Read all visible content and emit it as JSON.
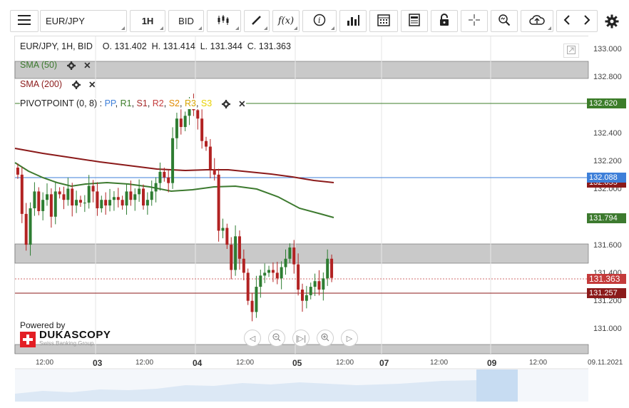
{
  "toolbar": {
    "symbol": "EUR/JPY",
    "timeframe": "1H",
    "price_type": "BID"
  },
  "ohlc": {
    "header": "EUR/JPY, 1H, BID",
    "o": "O. 131.402",
    "h": "H. 131.414",
    "l": "L. 131.344",
    "c": "C. 131.363"
  },
  "indicators": {
    "sma50": "SMA (50)",
    "sma200": "SMA (200)",
    "pivot_prefix": "PIVOTPOINT (0, 8)",
    "pivot_items": [
      {
        "label": "PP",
        "color": "#3d7fd9"
      },
      {
        "label": "R1",
        "color": "#3c7d2a"
      },
      {
        "label": "S1",
        "color": "#a52a2a"
      },
      {
        "label": "R2",
        "color": "#c43b3b"
      },
      {
        "label": "S2",
        "color": "#e08a00"
      },
      {
        "label": "R3",
        "color": "#d6a400"
      },
      {
        "label": "S3",
        "color": "#e8d100"
      }
    ]
  },
  "y_axis": {
    "labels": [
      "133.000",
      "132.800",
      "132.400",
      "132.200",
      "132.000",
      "131.600",
      "131.400",
      "131.200",
      "131.000"
    ],
    "tags": {
      "r1": "132.620",
      "pp": "132.088",
      "sma200": "132.055",
      "sma50": "131.794",
      "last": "131.363",
      "s1": "131.257"
    }
  },
  "x_axis": {
    "labels": [
      {
        "text": "12:00",
        "kind": "time"
      },
      {
        "text": "03",
        "kind": "day"
      },
      {
        "text": "12:00",
        "kind": "time"
      },
      {
        "text": "04",
        "kind": "day"
      },
      {
        "text": "12:00",
        "kind": "time"
      },
      {
        "text": "05",
        "kind": "day"
      },
      {
        "text": "12:00",
        "kind": "time"
      },
      {
        "text": "07",
        "kind": "day"
      },
      {
        "text": "12:00",
        "kind": "time"
      },
      {
        "text": "09",
        "kind": "day"
      },
      {
        "text": "12:00",
        "kind": "time"
      },
      {
        "text": "09.11.2021",
        "kind": "time"
      }
    ]
  },
  "branding": {
    "powered_by": "Powered by",
    "name": "DUKASCOPY",
    "tagline": "Swiss Banking Group"
  },
  "colors": {
    "bull": "#2e7d32",
    "bear": "#b22222",
    "sma50": "#3d7a2f",
    "sma200": "#8b1a1a",
    "pp": "#3d7fd9",
    "band": "#c8c8c8"
  },
  "chart_data": {
    "type": "candlestick",
    "price_range": [
      131.0,
      133.0
    ],
    "pivot_levels": {
      "R1": 132.62,
      "PP": 132.088,
      "S1": 131.257
    },
    "last_close": 131.363,
    "candles_close_approx": [
      132.1,
      131.82,
      131.6,
      131.86,
      131.98,
      131.84,
      131.92,
      131.96,
      131.8,
      131.98,
      131.96,
      131.92,
      132.0,
      131.88,
      131.92,
      131.9,
      131.9,
      132.02,
      131.98,
      131.86,
      131.92,
      131.88,
      131.92,
      131.94,
      131.92,
      131.88,
      131.98,
      131.92,
      131.96,
      132.0,
      131.88,
      131.92,
      131.98,
      132.04,
      132.12,
      132.08,
      132.04,
      132.36,
      132.5,
      132.44,
      132.52,
      132.6,
      132.56,
      132.5,
      132.34,
      132.3,
      132.14,
      132.1,
      131.7,
      131.72,
      131.6,
      131.42,
      131.66,
      131.5,
      131.4,
      131.2,
      131.12,
      131.3,
      131.38,
      131.4,
      131.42,
      131.4,
      131.36,
      131.44,
      131.5,
      131.58,
      131.46,
      131.28,
      131.2,
      131.24,
      131.3,
      131.34,
      131.28,
      131.36,
      131.5,
      131.363
    ]
  }
}
